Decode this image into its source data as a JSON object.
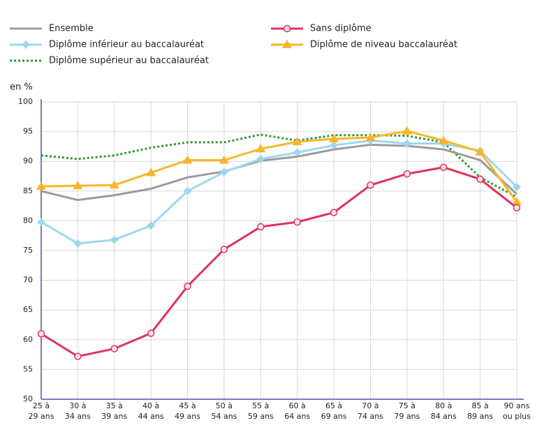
{
  "chart_data": {
    "type": "line",
    "y_label": "en %",
    "categories": [
      "25 à\n29 ans",
      "30 à\n34 ans",
      "35 à\n39 ans",
      "40 à\n44 ans",
      "45 à\n49 ans",
      "50 à\n54 ans",
      "55 à\n59 ans",
      "60 à\n64 ans",
      "65 à\n69 ans",
      "70 à\n74 ans",
      "75 à\n79 ans",
      "80 à\n84 ans",
      "85 à\n89 ans",
      "90 ans\nou plus"
    ],
    "series": [
      {
        "name": "Ensemble",
        "color": "#9b9b9b",
        "marker": "none",
        "dash": "solid",
        "values": [
          85,
          83.5,
          84.3,
          85.4,
          87.3,
          88.3,
          90.1,
          90.8,
          92,
          92.8,
          92.6,
          92,
          90.2,
          84.5
        ]
      },
      {
        "name": "Sans diplôme",
        "color": "#e0325d",
        "marker": "circle",
        "dash": "solid",
        "values": [
          61,
          57.2,
          58.5,
          61.1,
          69,
          75.2,
          79,
          79.8,
          81.4,
          86,
          87.9,
          89,
          87,
          82.2
        ]
      },
      {
        "name": "Diplôme inférieur au baccalauréat",
        "color": "#9fd6ef",
        "marker": "diamond",
        "dash": "solid",
        "values": [
          79.8,
          76.2,
          76.8,
          79.2,
          85,
          88.2,
          90.4,
          91.5,
          92.7,
          93.5,
          93,
          93,
          91.8,
          85.7
        ]
      },
      {
        "name": "Diplôme de niveau baccalauréat",
        "color": "#f9b52b",
        "marker": "triangle",
        "dash": "solid",
        "values": [
          85.8,
          85.9,
          86,
          88.1,
          90.2,
          90.2,
          92.1,
          93.3,
          93.8,
          94,
          95.1,
          93.5,
          91.6,
          83.2
        ]
      },
      {
        "name": "Diplôme supérieur au baccalauréat",
        "color": "#2e9a2e",
        "marker": "none",
        "dash": "dotted",
        "values": [
          91,
          90.4,
          91,
          92.3,
          93.2,
          93.2,
          94.5,
          93.5,
          94.4,
          94.4,
          94.3,
          93.2,
          87.3,
          84
        ]
      }
    ],
    "ylim": [
      50,
      100
    ],
    "yticks": [
      50,
      55,
      60,
      65,
      70,
      75,
      80,
      85,
      90,
      95,
      100
    ],
    "grid": true
  }
}
